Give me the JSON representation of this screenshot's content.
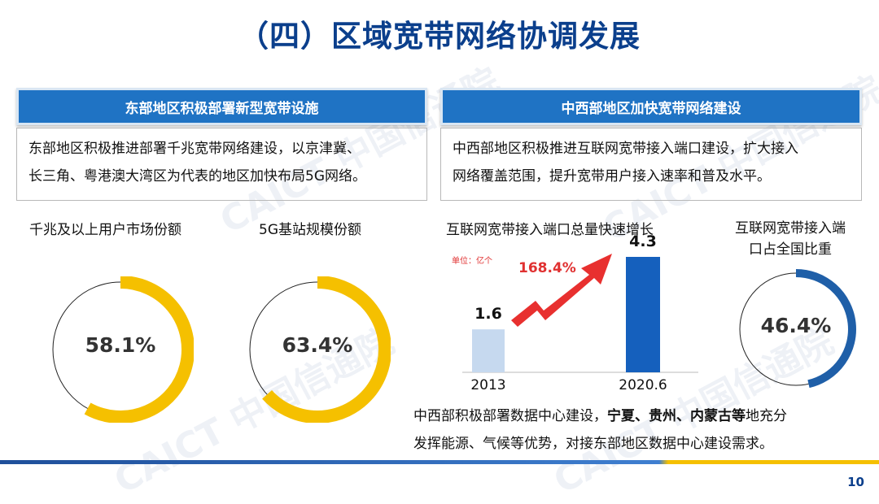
{
  "title": "（四）区域宽带网络协调发展",
  "left": {
    "header": "东部地区积极部署新型宽带设施",
    "body_line1": "东部地区积极推进部署千兆宽带网络建设，以京津冀、",
    "body_line2": "长三角、粤港澳大湾区为代表的地区加快布局5G网络。",
    "ring1": {
      "label": "千兆及以上用户市场份额",
      "value": "58.1%",
      "fraction": 0.581,
      "color": "#f5c000"
    },
    "ring2": {
      "label": "5G基站规模份额",
      "value": "63.4%",
      "fraction": 0.634,
      "color": "#f5c000"
    }
  },
  "right": {
    "header": "中西部地区加快宽带网络建设",
    "body_line1": "中西部地区积极推进互联网宽带接入端口建设，扩大接入",
    "body_line2": "网络覆盖范围，提升宽带用户接入速率和普及水平。",
    "ring": {
      "label_line1": "互联网宽带接入端",
      "label_line2": "口占全国比重",
      "value": "46.4%",
      "fraction": 0.464,
      "color": "#1f5fa8"
    },
    "bottom": {
      "line1_pre": "中西部积极部署数据中心建设，",
      "line1_bold": "宁夏、贵州、内蒙古等",
      "line1_post": "地充分",
      "line2": "发挥能源、气候等优势，对接东部地区数据中心建设需求。"
    }
  },
  "chart_data": {
    "type": "bar",
    "title": "互联网宽带接入端口总量快速增长",
    "unit_label": "单位：亿个",
    "categories": [
      "2013",
      "2020.6"
    ],
    "values": [
      1.6,
      4.3
    ],
    "value_labels": [
      "1.6",
      "4.3"
    ],
    "colors": [
      "#c6d9ef",
      "#1560bd"
    ],
    "growth_label": "168.4%"
  },
  "watermark": "CAICT 中国信通院",
  "page_number": "10",
  "colors": {
    "title": "#0b3f8c",
    "banner": "#1f73c4",
    "accent_red": "#e03131"
  }
}
